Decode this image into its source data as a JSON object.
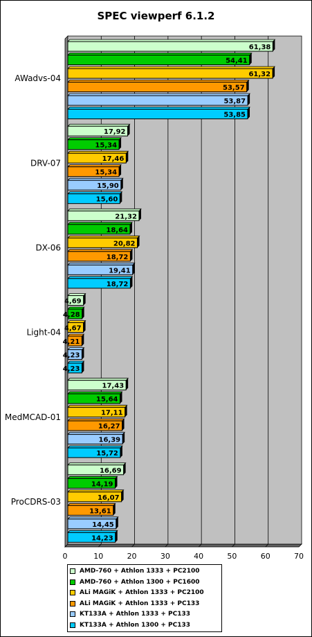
{
  "chart_data": {
    "type": "bar",
    "orientation": "horizontal",
    "title": "SPEC viewperf 6.1.2",
    "categories": [
      "AWadvs-04",
      "DRV-07",
      "DX-06",
      "Light-04",
      "MedMCAD-01",
      "ProCDRS-03"
    ],
    "series": [
      {
        "name": "AMD-760 + Athlon 1333 + PC2100",
        "color": "#ccffcc",
        "values": [
          61.38,
          17.92,
          21.32,
          4.69,
          17.43,
          16.69
        ],
        "labels": [
          "61,38",
          "17,92",
          "21,32",
          "4,69",
          "17,43",
          "16,69"
        ]
      },
      {
        "name": "AMD-760 + Athlon 1300 + PC1600",
        "color": "#00cc00",
        "values": [
          54.41,
          15.34,
          18.64,
          4.28,
          15.64,
          14.19
        ],
        "labels": [
          "54,41",
          "15,34",
          "18,64",
          "4,28",
          "15,64",
          "14,19"
        ]
      },
      {
        "name": "ALi MAGiK + Athlon 1333 + PC2100",
        "color": "#ffcc00",
        "values": [
          61.32,
          17.46,
          20.82,
          4.67,
          17.11,
          16.07
        ],
        "labels": [
          "61,32",
          "17,46",
          "20,82",
          "4,67",
          "17,11",
          "16,07"
        ]
      },
      {
        "name": "ALi MAGiK + Athlon 1333 + PC133",
        "color": "#ff9900",
        "values": [
          53.57,
          15.34,
          18.72,
          4.21,
          16.27,
          13.61
        ],
        "labels": [
          "53,57",
          "15,34",
          "18,72",
          "4,21",
          "16,27",
          "13,61"
        ]
      },
      {
        "name": "KT133A + Athlon 1333 + PC133",
        "color": "#99ccff",
        "values": [
          53.87,
          15.9,
          19.41,
          4.23,
          16.39,
          14.45
        ],
        "labels": [
          "53,87",
          "15,90",
          "19,41",
          "4,23",
          "16,39",
          "14,45"
        ]
      },
      {
        "name": "KT133A + Athlon 1300 + PC133",
        "color": "#00ccff",
        "values": [
          53.85,
          15.6,
          18.72,
          4.23,
          15.72,
          14.23
        ],
        "labels": [
          "53,85",
          "15,60",
          "18,72",
          "4,23",
          "15,72",
          "14,23"
        ]
      }
    ],
    "xlim": [
      0,
      70
    ],
    "xticks": [
      "0",
      "10",
      "20",
      "30",
      "40",
      "50",
      "60",
      "70"
    ],
    "grid": true,
    "plot_background": "#c0c0c0",
    "legend_position": "bottom"
  }
}
